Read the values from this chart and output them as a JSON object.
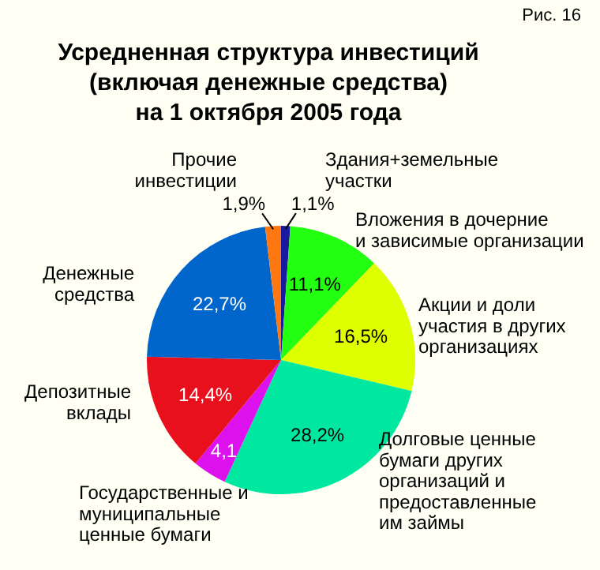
{
  "chart_data": {
    "type": "pie",
    "title": "Усредненная структура инвестиций\n(включая денежные средства)\nна 1 октября 2005 года",
    "annotations": [
      "Рис. 16"
    ],
    "categories": [
      "Здания+земельные\nучастки",
      "Вложения в дочерние\nи зависимые организации",
      "Акции и доли\nучастия в других\nорганизациях",
      "Долговые ценные\nбумаги других\nорганизаций и\nпредоставленные\nим займы",
      "Государственные и\nмуниципальные\nценные бумаги",
      "Депозитные\nвклады",
      "Денежные\nсредства",
      "Прочие\nинвестиции"
    ],
    "values": [
      1.1,
      11.1,
      16.5,
      28.2,
      4.1,
      14.4,
      22.7,
      1.9
    ],
    "value_labels": [
      "1,1%",
      "11,1%",
      "16,5%",
      "28,2%",
      "4,1",
      "14,4%",
      "22,7%",
      "1,9%"
    ],
    "colors": [
      "#1a1aa0",
      "#22ff11",
      "#ddff00",
      "#00e8a0",
      "#dd11ee",
      "#e8101c",
      "#0066cc",
      "#ff7711"
    ]
  }
}
